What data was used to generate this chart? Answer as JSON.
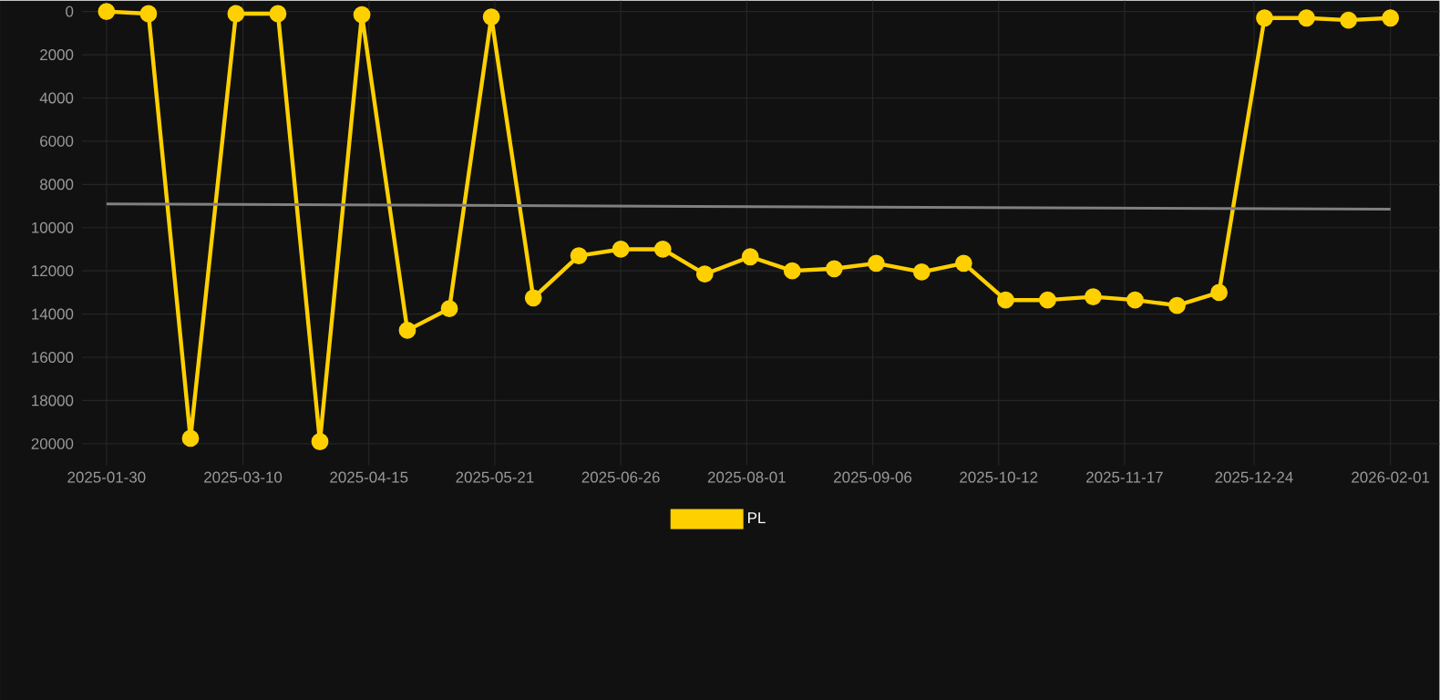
{
  "chart_data": {
    "type": "line",
    "x": [
      "2025-01-30",
      "2025-02-11",
      "2025-02-23",
      "2025-03-08",
      "2025-03-20",
      "2025-04-01",
      "2025-04-13",
      "2025-04-26",
      "2025-05-08",
      "2025-05-20",
      "2025-06-01",
      "2025-06-14",
      "2025-06-26",
      "2025-07-08",
      "2025-07-20",
      "2025-08-02",
      "2025-08-14",
      "2025-08-26",
      "2025-09-07",
      "2025-09-20",
      "2025-10-02",
      "2025-10-14",
      "2025-10-26",
      "2025-11-08",
      "2025-11-20",
      "2025-12-02",
      "2025-12-14",
      "2025-12-27",
      "2026-01-08",
      "2026-01-20",
      "2026-02-01"
    ],
    "series": [
      {
        "name": "PL",
        "color": "#ffd000",
        "values": [
          0,
          100,
          19750,
          100,
          100,
          19900,
          150,
          14750,
          13750,
          250,
          13250,
          11300,
          11000,
          11000,
          12150,
          11350,
          12000,
          11900,
          11650,
          12050,
          11650,
          13350,
          13350,
          13200,
          13350,
          13600,
          13000,
          300,
          300,
          400,
          300
        ]
      },
      {
        "type": "line",
        "color": "#808080",
        "marker": "none",
        "x": [
          "2025-01-30",
          "2026-02-01"
        ],
        "values": [
          8900,
          9150
        ]
      }
    ],
    "xlim": [
      "2025-01-23",
      "2026-02-15"
    ],
    "xticks": [
      "2025-01-30",
      "2025-03-10",
      "2025-04-15",
      "2025-05-21",
      "2025-06-26",
      "2025-08-01",
      "2025-09-06",
      "2025-10-12",
      "2025-11-17",
      "2025-12-24",
      "2026-02-01"
    ],
    "ylim": [
      21000,
      -500
    ],
    "yticks": [
      0,
      2000,
      4000,
      6000,
      8000,
      10000,
      12000,
      14000,
      16000,
      18000,
      20000
    ],
    "grid": true,
    "legend": "bottom",
    "marker": "circle",
    "line_style": "solid"
  }
}
